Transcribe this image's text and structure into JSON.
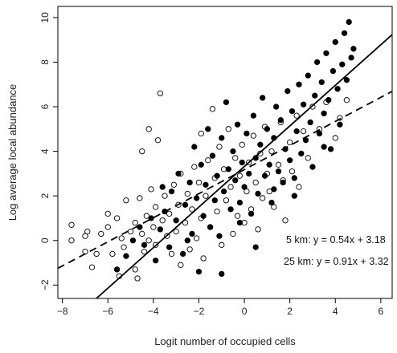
{
  "chart_data": {
    "type": "scatter",
    "title": "",
    "xlabel": "Logit number of occupied cells",
    "ylabel": "Log average local abundance",
    "xlim": [
      -8.2,
      6.5
    ],
    "ylim": [
      -2.6,
      10.5
    ],
    "x_ticks": [
      -8,
      -6,
      -4,
      -2,
      0,
      2,
      4,
      6
    ],
    "y_ticks": [
      -2,
      0,
      2,
      4,
      6,
      8,
      10
    ],
    "x_tick_labels": [
      "−8",
      "−6",
      "−4",
      "−2",
      "0",
      "2",
      "4",
      "6"
    ],
    "y_tick_labels": [
      "−2",
      "0",
      "2",
      "4",
      "6",
      "8",
      "10"
    ],
    "grid": false,
    "lines": [
      {
        "id": "5km",
        "slope": 0.54,
        "intercept": 3.18,
        "style": "dashed"
      },
      {
        "id": "25km",
        "slope": 0.91,
        "intercept": 3.32,
        "style": "solid"
      }
    ],
    "annotations": [
      "5 km: y = 0.54x + 3.18",
      "25 km: y = 0.91x + 3.32"
    ],
    "series": [
      {
        "marker": "open-circle",
        "points": [
          [
            -7.6,
            0.7
          ],
          [
            -7.6,
            0.0
          ],
          [
            -7.0,
            0.2
          ],
          [
            -7.0,
            -0.5
          ],
          [
            -6.9,
            0.4
          ],
          [
            -6.7,
            -1.2
          ],
          [
            -6.5,
            -0.6
          ],
          [
            -6.3,
            0.3
          ],
          [
            -6.0,
            1.2
          ],
          [
            -6.0,
            0.6
          ],
          [
            -5.8,
            -0.6
          ],
          [
            -5.6,
            1.0
          ],
          [
            -5.5,
            -1.6
          ],
          [
            -5.4,
            0.1
          ],
          [
            -5.3,
            -0.3
          ],
          [
            -5.2,
            1.8
          ],
          [
            -5.0,
            0.4
          ],
          [
            -4.8,
            -1.3
          ],
          [
            -4.8,
            0.8
          ],
          [
            -4.7,
            -1.7
          ],
          [
            -4.6,
            1.9
          ],
          [
            -4.5,
            0.3
          ],
          [
            -4.4,
            -0.5
          ],
          [
            -4.3,
            1.1
          ],
          [
            -4.2,
            0.0
          ],
          [
            -4.1,
            2.3
          ],
          [
            -4.0,
            0.6
          ],
          [
            -3.9,
            -0.2
          ],
          [
            -3.9,
            1.5
          ],
          [
            -3.8,
            4.5
          ],
          [
            -3.7,
            6.6
          ],
          [
            -3.6,
            0.9
          ],
          [
            -4.5,
            4.0
          ],
          [
            -4.2,
            5.0
          ],
          [
            -3.5,
            2.0
          ],
          [
            -3.4,
            0.2
          ],
          [
            -3.3,
            1.2
          ],
          [
            -3.2,
            -0.6
          ],
          [
            -3.1,
            2.5
          ],
          [
            -3.0,
            0.4
          ],
          [
            -2.9,
            1.6
          ],
          [
            -2.8,
            -1.1
          ],
          [
            -2.8,
            3.0
          ],
          [
            -2.6,
            0.8
          ],
          [
            -2.5,
            2.1
          ],
          [
            -2.4,
            -0.4
          ],
          [
            -2.3,
            1.4
          ],
          [
            -2.2,
            3.3
          ],
          [
            -2.1,
            0.1
          ],
          [
            -2.0,
            2.6
          ],
          [
            -1.9,
            4.8
          ],
          [
            -1.9,
            1.0
          ],
          [
            -1.8,
            -0.8
          ],
          [
            -1.7,
            2.0
          ],
          [
            -1.6,
            3.6
          ],
          [
            -1.5,
            0.6
          ],
          [
            -1.4,
            5.9
          ],
          [
            -1.3,
            2.8
          ],
          [
            -1.2,
            1.3
          ],
          [
            -1.1,
            4.2
          ],
          [
            -1.0,
            -0.2
          ],
          [
            -0.9,
            3.2
          ],
          [
            -0.8,
            1.8
          ],
          [
            -0.7,
            5.0
          ],
          [
            -0.6,
            2.4
          ],
          [
            -0.5,
            0.3
          ],
          [
            -0.4,
            3.7
          ],
          [
            -0.3,
            1.1
          ],
          [
            -0.2,
            2.9
          ],
          [
            -0.1,
            4.3
          ],
          [
            0.0,
            0.8
          ],
          [
            0.1,
            2.2
          ],
          [
            0.2,
            3.5
          ],
          [
            0.3,
            1.4
          ],
          [
            0.4,
            4.7
          ],
          [
            0.5,
            2.6
          ],
          [
            0.6,
            0.5
          ],
          [
            0.7,
            3.9
          ],
          [
            0.8,
            1.9
          ],
          [
            0.9,
            5.1
          ],
          [
            1.0,
            3.0
          ],
          [
            1.1,
            2.2
          ],
          [
            1.2,
            4.0
          ],
          [
            1.3,
            1.5
          ],
          [
            1.5,
            3.4
          ],
          [
            1.6,
            5.3
          ],
          [
            1.7,
            2.7
          ],
          [
            1.8,
            0.9
          ],
          [
            2.0,
            4.4
          ],
          [
            2.1,
            3.1
          ],
          [
            2.3,
            5.6
          ],
          [
            2.4,
            2.4
          ],
          [
            2.6,
            4.9
          ],
          [
            2.8,
            3.7
          ],
          [
            3.0,
            6.0
          ],
          [
            3.3,
            5.0
          ],
          [
            3.6,
            6.2
          ],
          [
            4.0,
            4.6
          ],
          [
            4.2,
            5.5
          ],
          [
            4.5,
            6.3
          ]
        ]
      },
      {
        "marker": "filled-circle",
        "points": [
          [
            -5.6,
            -1.3
          ],
          [
            -5.2,
            -0.7
          ],
          [
            -4.9,
            0.0
          ],
          [
            -4.6,
            0.6
          ],
          [
            -4.4,
            -0.2
          ],
          [
            -4.1,
            1.0
          ],
          [
            -3.9,
            -0.9
          ],
          [
            -3.7,
            0.5
          ],
          [
            -3.5,
            1.3
          ],
          [
            -3.3,
            -0.3
          ],
          [
            -3.2,
            2.2
          ],
          [
            -3.0,
            0.9
          ],
          [
            -2.9,
            3.0
          ],
          [
            -2.7,
            -0.6
          ],
          [
            -2.6,
            1.6
          ],
          [
            -2.4,
            2.6
          ],
          [
            -2.3,
            0.3
          ],
          [
            -2.2,
            4.2
          ],
          [
            -2.1,
            1.9
          ],
          [
            -2.0,
            -1.4
          ],
          [
            -1.9,
            3.4
          ],
          [
            -1.8,
            1.1
          ],
          [
            -1.7,
            2.5
          ],
          [
            -1.6,
            5.0
          ],
          [
            -1.5,
            0.6
          ],
          [
            -1.4,
            3.8
          ],
          [
            -1.3,
            1.8
          ],
          [
            -1.2,
            2.9
          ],
          [
            -1.1,
            0.2
          ],
          [
            -1.0,
            4.6
          ],
          [
            -0.9,
            2.2
          ],
          [
            -0.8,
            6.2
          ],
          [
            -0.7,
            3.2
          ],
          [
            -0.6,
            1.4
          ],
          [
            -0.5,
            4.0
          ],
          [
            -0.4,
            2.7
          ],
          [
            -0.3,
            5.2
          ],
          [
            -0.2,
            1.7
          ],
          [
            -0.1,
            3.5
          ],
          [
            0.0,
            2.4
          ],
          [
            0.1,
            4.8
          ],
          [
            0.2,
            3.0
          ],
          [
            0.3,
            1.2
          ],
          [
            0.4,
            5.6
          ],
          [
            0.5,
            3.7
          ],
          [
            0.6,
            2.1
          ],
          [
            0.7,
            4.3
          ],
          [
            0.8,
            6.4
          ],
          [
            0.9,
            2.9
          ],
          [
            1.0,
            5.0
          ],
          [
            1.1,
            3.4
          ],
          [
            1.2,
            1.7
          ],
          [
            1.3,
            4.6
          ],
          [
            1.4,
            6.0
          ],
          [
            1.5,
            3.1
          ],
          [
            1.6,
            5.4
          ],
          [
            1.7,
            2.6
          ],
          [
            1.8,
            4.1
          ],
          [
            1.9,
            6.7
          ],
          [
            2.0,
            3.6
          ],
          [
            2.1,
            5.8
          ],
          [
            2.2,
            2.8
          ],
          [
            2.3,
            4.9
          ],
          [
            2.4,
            7.0
          ],
          [
            2.5,
            3.9
          ],
          [
            2.6,
            6.1
          ],
          [
            2.7,
            4.5
          ],
          [
            2.8,
            7.4
          ],
          [
            2.9,
            5.3
          ],
          [
            3.0,
            3.3
          ],
          [
            3.1,
            6.5
          ],
          [
            3.2,
            8.0
          ],
          [
            3.3,
            4.8
          ],
          [
            3.4,
            7.1
          ],
          [
            3.5,
            5.7
          ],
          [
            3.6,
            8.4
          ],
          [
            3.7,
            6.3
          ],
          [
            3.8,
            4.1
          ],
          [
            3.9,
            7.6
          ],
          [
            4.0,
            8.9
          ],
          [
            4.1,
            6.8
          ],
          [
            4.2,
            5.2
          ],
          [
            4.3,
            7.9
          ],
          [
            4.4,
            9.3
          ],
          [
            4.5,
            7.2
          ],
          [
            4.6,
            9.8
          ],
          [
            4.7,
            8.2
          ],
          [
            4.8,
            8.6
          ],
          [
            -1.0,
            -1.5
          ],
          [
            0.5,
            -0.3
          ],
          [
            -2.5,
            0.0
          ],
          [
            2.2,
            2.0
          ],
          [
            1.3,
            2.3
          ],
          [
            -0.2,
            0.8
          ],
          [
            3.5,
            4.2
          ],
          [
            -3.6,
            2.4
          ]
        ]
      }
    ]
  }
}
